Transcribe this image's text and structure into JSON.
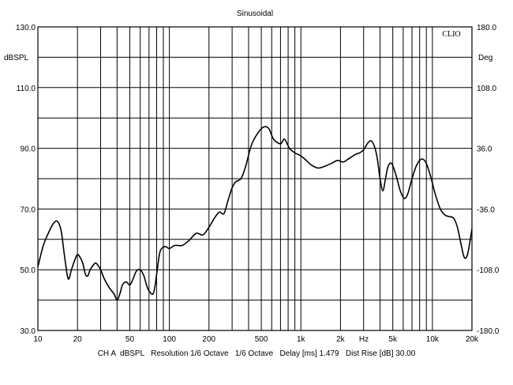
{
  "chart_data": {
    "type": "line",
    "title": "Sinusoidal",
    "brand": "CLIO",
    "left_unit": "dBSPL",
    "right_unit": "Deg",
    "xlim": [
      10,
      20000
    ],
    "xscale": "log",
    "ylim": [
      30,
      130
    ],
    "y2lim": [
      -180,
      180
    ],
    "grid": true,
    "x_ticks": [
      {
        "v": 10,
        "t": "10"
      },
      {
        "v": 20,
        "t": "20"
      },
      {
        "v": 50,
        "t": "50"
      },
      {
        "v": 100,
        "t": "100"
      },
      {
        "v": 200,
        "t": "200"
      },
      {
        "v": 500,
        "t": "500"
      },
      {
        "v": 1000,
        "t": "1k"
      },
      {
        "v": 2000,
        "t": "2k"
      },
      {
        "v": 5000,
        "t": "5k"
      },
      {
        "v": 10000,
        "t": "10k"
      },
      {
        "v": 20000,
        "t": "20k"
      }
    ],
    "x_unit": "Hz",
    "y_ticks": [
      {
        "v": 130,
        "t": "130.0"
      },
      {
        "v": 110,
        "t": "110.0"
      },
      {
        "v": 90,
        "t": "90.0"
      },
      {
        "v": 70,
        "t": "70.0"
      },
      {
        "v": 50,
        "t": "50.0"
      },
      {
        "v": 30,
        "t": "30.0"
      }
    ],
    "y2_ticks": [
      {
        "v": 180,
        "t": "180.0"
      },
      {
        "v": 108,
        "t": "108.0"
      },
      {
        "v": 36,
        "t": "36.0"
      },
      {
        "v": -36,
        "t": "-36.0"
      },
      {
        "v": -108,
        "t": "-108.0"
      },
      {
        "v": -180,
        "t": "-180.0"
      }
    ],
    "series": [
      {
        "color": "#000000",
        "points": [
          [
            10,
            51
          ],
          [
            11,
            58
          ],
          [
            12,
            62
          ],
          [
            13,
            65
          ],
          [
            14,
            66
          ],
          [
            15,
            63
          ],
          [
            16,
            54
          ],
          [
            17,
            47
          ],
          [
            18,
            50
          ],
          [
            19,
            53
          ],
          [
            20,
            55
          ],
          [
            21,
            54
          ],
          [
            22,
            52
          ],
          [
            23,
            48.5
          ],
          [
            24,
            48
          ],
          [
            25,
            50
          ],
          [
            27,
            52
          ],
          [
            28,
            52
          ],
          [
            30,
            50
          ],
          [
            32,
            47
          ],
          [
            35,
            44
          ],
          [
            38,
            42
          ],
          [
            40,
            40
          ],
          [
            42,
            42
          ],
          [
            44,
            45
          ],
          [
            47,
            46
          ],
          [
            50,
            45
          ],
          [
            53,
            47
          ],
          [
            56,
            49.5
          ],
          [
            60,
            50
          ],
          [
            64,
            48
          ],
          [
            67,
            45
          ],
          [
            70,
            43
          ],
          [
            75,
            42
          ],
          [
            78,
            45
          ],
          [
            82,
            52
          ],
          [
            85,
            56
          ],
          [
            90,
            57.5
          ],
          [
            95,
            57.5
          ],
          [
            100,
            57
          ],
          [
            110,
            58
          ],
          [
            125,
            58
          ],
          [
            140,
            59.5
          ],
          [
            160,
            62
          ],
          [
            180,
            61.5
          ],
          [
            200,
            64
          ],
          [
            220,
            67
          ],
          [
            240,
            69
          ],
          [
            260,
            68.5
          ],
          [
            280,
            73
          ],
          [
            300,
            77
          ],
          [
            320,
            79
          ],
          [
            350,
            80
          ],
          [
            380,
            84
          ],
          [
            420,
            91
          ],
          [
            470,
            95
          ],
          [
            520,
            97
          ],
          [
            570,
            96.5
          ],
          [
            620,
            93
          ],
          [
            700,
            91.5
          ],
          [
            750,
            93
          ],
          [
            820,
            90
          ],
          [
            900,
            88.5
          ],
          [
            1000,
            87.5
          ],
          [
            1100,
            86
          ],
          [
            1200,
            84.5
          ],
          [
            1350,
            83.5
          ],
          [
            1500,
            84
          ],
          [
            1700,
            85
          ],
          [
            1900,
            86
          ],
          [
            2100,
            85.5
          ],
          [
            2300,
            86.5
          ],
          [
            2600,
            88
          ],
          [
            2800,
            88.5
          ],
          [
            3000,
            89.5
          ],
          [
            3200,
            91.5
          ],
          [
            3400,
            92.5
          ],
          [
            3600,
            91
          ],
          [
            3800,
            87
          ],
          [
            4000,
            80
          ],
          [
            4200,
            76
          ],
          [
            4400,
            80
          ],
          [
            4600,
            84
          ],
          [
            4900,
            85
          ],
          [
            5300,
            81
          ],
          [
            5700,
            76
          ],
          [
            6100,
            73.5
          ],
          [
            6500,
            75
          ],
          [
            7000,
            80
          ],
          [
            7600,
            84.5
          ],
          [
            8300,
            86.5
          ],
          [
            9000,
            85
          ],
          [
            9800,
            80
          ],
          [
            10500,
            75
          ],
          [
            11500,
            70
          ],
          [
            12500,
            68
          ],
          [
            13500,
            67.5
          ],
          [
            14500,
            67
          ],
          [
            15500,
            64
          ],
          [
            16500,
            58.5
          ],
          [
            17500,
            54
          ],
          [
            18500,
            55
          ],
          [
            19500,
            60.5
          ],
          [
            20000,
            63.5
          ]
        ]
      }
    ]
  },
  "footer": {
    "text": "CH A  dBSPL   Resolution 1/6 Octave   1/6 Octave   Delay [ms] 1.479   Dist Rise [dB] 30.00"
  }
}
